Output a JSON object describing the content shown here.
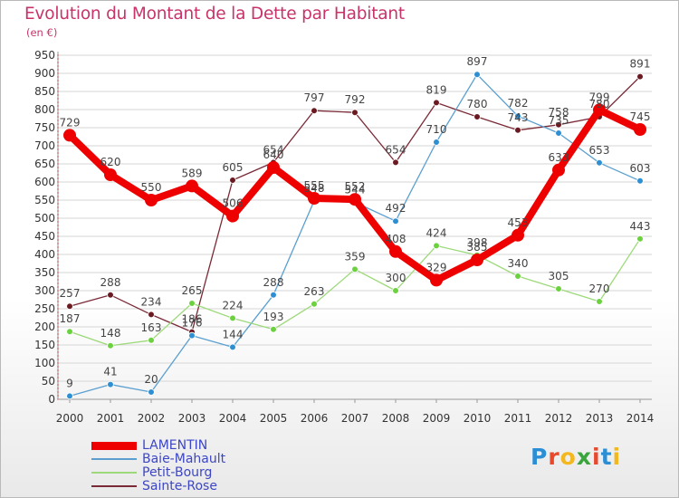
{
  "header": {
    "title": "Evolution du Montant de la Dette par Habitant",
    "unit": "(en €)"
  },
  "brand": {
    "name": "Proxiti",
    "letter_colors": [
      "#2c8fd6",
      "#e8482c",
      "#f3b81d",
      "#3aa53c",
      "#e8482c",
      "#2c8fd6",
      "#f3b81d"
    ]
  },
  "chart_data": {
    "type": "line",
    "title": "Evolution du Montant de la Dette par Habitant",
    "ylabel": "(en €)",
    "xlabel": "",
    "x": [
      "2000",
      "2001",
      "2002",
      "2003",
      "2004",
      "2005",
      "2006",
      "2007",
      "2008",
      "2009",
      "2010",
      "2011",
      "2012",
      "2013",
      "2014"
    ],
    "ylim": [
      0,
      950
    ],
    "yticks": [
      0,
      50,
      100,
      150,
      200,
      250,
      300,
      350,
      400,
      450,
      500,
      550,
      600,
      650,
      700,
      750,
      800,
      850,
      900,
      950
    ],
    "grid": true,
    "legend_position": "bottom-left",
    "series": [
      {
        "name": "LAMENTIN",
        "color": "#ee0000",
        "marker_color": "#ee0000",
        "values": [
          729,
          620,
          550,
          589,
          506,
          640,
          555,
          552,
          408,
          329,
          385,
          453,
          633,
          799,
          745
        ]
      },
      {
        "name": "Baie-Mahault",
        "color": "#5a9fd0",
        "marker_color": "#2e8fd2",
        "values": [
          9,
          41,
          20,
          176,
          144,
          288,
          548,
          544,
          492,
          710,
          897,
          782,
          735,
          653,
          603
        ]
      },
      {
        "name": "Petit-Bourg",
        "color": "#9dd97a",
        "marker_color": "#6bd13f",
        "values": [
          187,
          148,
          163,
          265,
          224,
          193,
          263,
          359,
          300,
          424,
          398,
          340,
          305,
          270,
          443
        ]
      },
      {
        "name": "Sainte-Rose",
        "color": "#7a2a36",
        "marker_color": "#6b1a22",
        "values": [
          257,
          288,
          234,
          186,
          605,
          654,
          797,
          792,
          654,
          819,
          780,
          743,
          758,
          780,
          891
        ]
      }
    ]
  }
}
